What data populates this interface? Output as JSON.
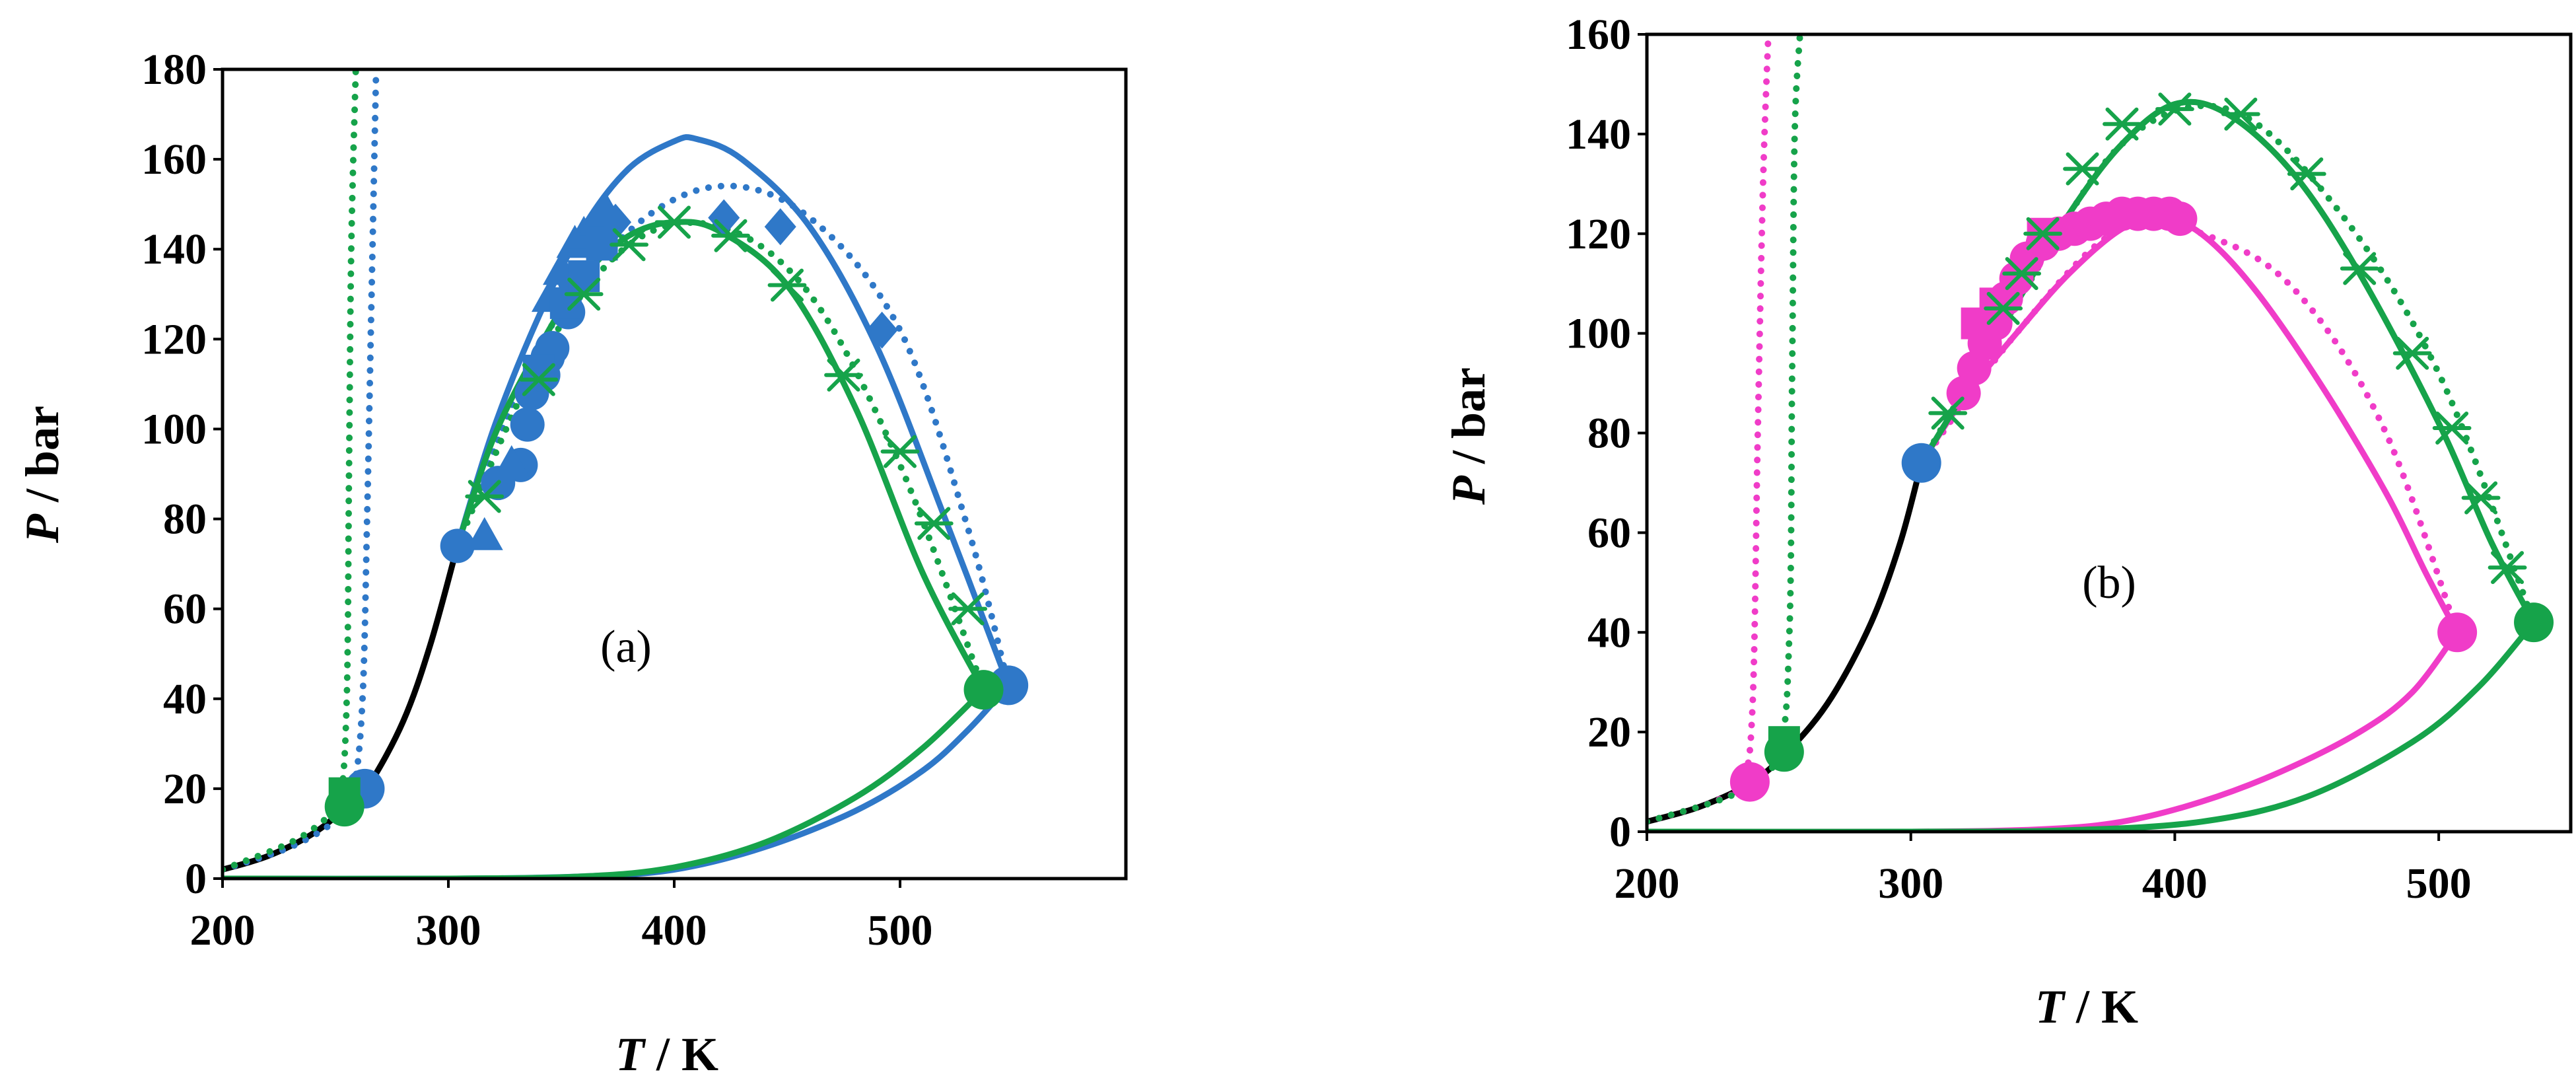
{
  "figure": {
    "panels": [
      "a",
      "b"
    ]
  },
  "colors": {
    "blue": "#2f78c8",
    "green": "#16a34a",
    "magenta": "#f03cc8",
    "black": "#000000"
  },
  "chart_data": [
    {
      "id": "a",
      "type": "line",
      "annotation": "(a)",
      "xlabel_symbol": "T",
      "xlabel_unit": " / K",
      "ylabel_symbol": "P",
      "ylabel_unit": " / bar",
      "xlim": [
        200,
        600
      ],
      "ylim": [
        0,
        180
      ],
      "xticks": [
        200,
        300,
        400,
        500
      ],
      "xtick_labels": [
        "200",
        "300",
        "400",
        "500"
      ],
      "yticks": [
        0,
        20,
        40,
        60,
        80,
        100,
        120,
        140,
        160,
        180
      ],
      "ytick_labels": [
        "0",
        "20",
        "40",
        "60",
        "80",
        "100",
        "120",
        "140",
        "160",
        "180"
      ],
      "lines": [
        {
          "name": "vapor-pressure",
          "color": "black",
          "style": "solid",
          "x": [
            200,
            220,
            240,
            255,
            265,
            280,
            292,
            304
          ],
          "y": [
            2,
            5,
            10,
            16,
            21,
            35,
            52,
            74
          ]
        },
        {
          "name": "blue-dew-solid",
          "color": "blue",
          "style": "solid",
          "x": [
            304,
            320,
            340,
            360,
            380,
            400,
            410,
            430,
            460,
            490,
            520,
            548
          ],
          "y": [
            74,
            100,
            125,
            145,
            158,
            164,
            164.5,
            160,
            145,
            118,
            80,
            43
          ]
        },
        {
          "name": "blue-dew-dotted",
          "color": "blue",
          "style": "dotted",
          "x": [
            304,
            340,
            380,
            420,
            460,
            500,
            530,
            548
          ],
          "y": [
            74,
            118,
            144,
            154,
            147,
            122,
            78,
            43
          ]
        },
        {
          "name": "blue-bubble-solid",
          "color": "blue",
          "style": "solid",
          "x": [
            200,
            300,
            360,
            400,
            440,
            480,
            510,
            530,
            548
          ],
          "y": [
            0,
            0,
            0.5,
            2,
            7,
            15,
            24,
            33,
            43
          ]
        },
        {
          "name": "blue-vertical-dotted",
          "color": "blue",
          "style": "dotted",
          "x": [
            200,
            230,
            250,
            258,
            262,
            264,
            266,
            268
          ],
          "y": [
            2,
            7,
            13,
            20,
            40,
            80,
            130,
            180
          ]
        },
        {
          "name": "green-dew-solid",
          "color": "green",
          "style": "solid",
          "x": [
            304,
            320,
            340,
            360,
            380,
            400,
            420,
            450,
            480,
            510,
            537
          ],
          "y": [
            74,
            98,
            118,
            134,
            143,
            146,
            144,
            132,
            105,
            68,
            42
          ]
        },
        {
          "name": "green-dew-dotted",
          "color": "green",
          "style": "dotted",
          "x": [
            304,
            340,
            380,
            420,
            460,
            500,
            537
          ],
          "y": [
            74,
            115,
            141,
            145,
            130,
            92,
            42
          ]
        },
        {
          "name": "green-bubble-solid",
          "color": "green",
          "style": "solid",
          "x": [
            200,
            300,
            360,
            400,
            440,
            480,
            510,
            537
          ],
          "y": [
            0,
            0,
            0.5,
            2.5,
            8,
            18,
            29,
            42
          ]
        },
        {
          "name": "green-vertical-dotted",
          "color": "green",
          "style": "dotted",
          "x": [
            200,
            230,
            245,
            252,
            255,
            256,
            257,
            259
          ],
          "y": [
            2,
            8,
            13,
            17,
            40,
            90,
            140,
            180
          ]
        }
      ],
      "markers": [
        {
          "name": "blue-circles",
          "color": "blue",
          "shape": "circle",
          "x": [
            304,
            322,
            332,
            335,
            337,
            342,
            344,
            346,
            353,
            356
          ],
          "y": [
            74,
            88,
            92,
            101,
            108,
            112,
            116,
            118,
            126,
            133
          ]
        },
        {
          "name": "blue-triangles",
          "color": "blue",
          "shape": "triangle",
          "x": [
            316,
            328,
            345,
            350,
            356,
            360,
            366,
            370
          ],
          "y": [
            76,
            92,
            129,
            135,
            141,
            143,
            146,
            148
          ]
        },
        {
          "name": "blue-squares",
          "color": "blue",
          "shape": "square",
          "x": [
            340,
            352,
            360,
            368
          ],
          "y": [
            113,
            128,
            134,
            141
          ]
        },
        {
          "name": "blue-diamonds",
          "color": "blue",
          "shape": "diamond",
          "x": [
            374,
            422,
            447,
            492
          ],
          "y": [
            146,
            147,
            145,
            122
          ]
        },
        {
          "name": "blue-critical",
          "color": "blue",
          "shape": "circle-large",
          "x": [
            263,
            548
          ],
          "y": [
            20,
            43
          ]
        },
        {
          "name": "green-crosses",
          "color": "green",
          "shape": "asterisk",
          "x": [
            316,
            340,
            360,
            380,
            400,
            425,
            450,
            475,
            500,
            515,
            530
          ],
          "y": [
            85,
            111,
            130,
            141,
            146,
            143,
            132,
            112,
            95,
            79,
            60
          ]
        },
        {
          "name": "green-critical",
          "color": "green",
          "shape": "circle-large",
          "x": [
            254,
            537
          ],
          "y": [
            16,
            42
          ]
        },
        {
          "name": "green-square",
          "color": "green",
          "shape": "square",
          "x": [
            254
          ],
          "y": [
            19
          ]
        }
      ]
    },
    {
      "id": "b",
      "type": "line",
      "annotation": "(b)",
      "xlabel_symbol": "T",
      "xlabel_unit": " / K",
      "ylabel_symbol": "P",
      "ylabel_unit": " / bar",
      "xlim": [
        200,
        550
      ],
      "ylim": [
        0,
        160
      ],
      "xticks": [
        200,
        300,
        400,
        500
      ],
      "xtick_labels": [
        "200",
        "300",
        "400",
        "500"
      ],
      "yticks": [
        0,
        20,
        40,
        60,
        80,
        100,
        120,
        140,
        160
      ],
      "ytick_labels": [
        "0",
        "20",
        "40",
        "60",
        "80",
        "100",
        "120",
        "140",
        "160"
      ],
      "lines": [
        {
          "name": "vapor-pressure",
          "color": "black",
          "style": "solid",
          "x": [
            200,
            220,
            240,
            255,
            270,
            285,
            296,
            304
          ],
          "y": [
            2,
            5,
            10,
            17,
            27,
            42,
            58,
            74
          ]
        },
        {
          "name": "magenta-dew-solid",
          "color": "magenta",
          "style": "solid",
          "x": [
            304,
            320,
            340,
            360,
            380,
            395,
            410,
            430,
            455,
            480,
            495,
            507
          ],
          "y": [
            74,
            87,
            100,
            112,
            121,
            123,
            120,
            109,
            90,
            68,
            52,
            40
          ]
        },
        {
          "name": "magenta-dew-dotted",
          "color": "magenta",
          "style": "dotted",
          "x": [
            304,
            340,
            380,
            420,
            450,
            480,
            507
          ],
          "y": [
            74,
            100,
            121,
            118,
            106,
            80,
            40
          ]
        },
        {
          "name": "magenta-bubble-solid",
          "color": "magenta",
          "style": "solid",
          "x": [
            200,
            300,
            350,
            380,
            410,
            440,
            470,
            490,
            507
          ],
          "y": [
            0,
            0,
            0.5,
            2,
            6,
            12,
            20,
            28,
            40
          ]
        },
        {
          "name": "magenta-vertical-dotted",
          "color": "magenta",
          "style": "dotted",
          "x": [
            200,
            225,
            236,
            240,
            242,
            244,
            246
          ],
          "y": [
            2,
            6,
            10,
            25,
            80,
            130,
            160
          ]
        },
        {
          "name": "green-dew-solid",
          "color": "green",
          "style": "solid",
          "x": [
            304,
            320,
            340,
            360,
            380,
            400,
            420,
            445,
            470,
            500,
            520,
            536
          ],
          "y": [
            74,
            88,
            106,
            124,
            138,
            146,
            144,
            132,
            112,
            82,
            58,
            42
          ]
        },
        {
          "name": "green-dew-dotted",
          "color": "green",
          "style": "dotted",
          "x": [
            304,
            340,
            380,
            420,
            460,
            500,
            536
          ],
          "y": [
            74,
            106,
            138,
            145,
            126,
            92,
            42
          ]
        },
        {
          "name": "green-bubble-solid",
          "color": "green",
          "style": "solid",
          "x": [
            200,
            300,
            360,
            410,
            450,
            490,
            515,
            536
          ],
          "y": [
            0,
            0,
            0.3,
            2,
            7,
            18,
            29,
            42
          ]
        },
        {
          "name": "green-vertical-dotted",
          "color": "green",
          "style": "dotted",
          "x": [
            200,
            235,
            250,
            254,
            255,
            256,
            258
          ],
          "y": [
            2,
            8,
            16,
            40,
            90,
            140,
            160
          ]
        }
      ],
      "markers": [
        {
          "name": "magenta-circles",
          "color": "magenta",
          "shape": "circle",
          "x": [
            320,
            324,
            328,
            332,
            336,
            340,
            344,
            350,
            356,
            362,
            368,
            374,
            380,
            386,
            392,
            398,
            402
          ],
          "y": [
            88,
            93,
            98,
            102,
            107,
            111,
            115,
            118,
            120,
            121,
            122,
            123,
            124,
            124,
            124,
            124,
            123
          ]
        },
        {
          "name": "magenta-squares",
          "color": "magenta",
          "shape": "square",
          "x": [
            325,
            332,
            350
          ],
          "y": [
            102,
            106,
            120
          ]
        },
        {
          "name": "magenta-critical",
          "color": "magenta",
          "shape": "circle-large",
          "x": [
            239,
            507
          ],
          "y": [
            10,
            40
          ]
        },
        {
          "name": "blue-critical",
          "color": "blue",
          "shape": "circle-large",
          "x": [
            304
          ],
          "y": [
            74
          ]
        },
        {
          "name": "green-crosses",
          "color": "green",
          "shape": "asterisk",
          "x": [
            314,
            335,
            342,
            350,
            365,
            380,
            400,
            425,
            450,
            470,
            490,
            505,
            516,
            526
          ],
          "y": [
            84,
            105,
            112,
            120,
            133,
            142,
            145,
            144,
            132,
            113,
            96,
            81,
            67,
            53
          ]
        },
        {
          "name": "green-critical",
          "color": "green",
          "shape": "circle-large",
          "x": [
            252,
            536
          ],
          "y": [
            16,
            42
          ]
        },
        {
          "name": "green-square",
          "color": "green",
          "shape": "square",
          "x": [
            252
          ],
          "y": [
            18
          ]
        }
      ]
    }
  ]
}
